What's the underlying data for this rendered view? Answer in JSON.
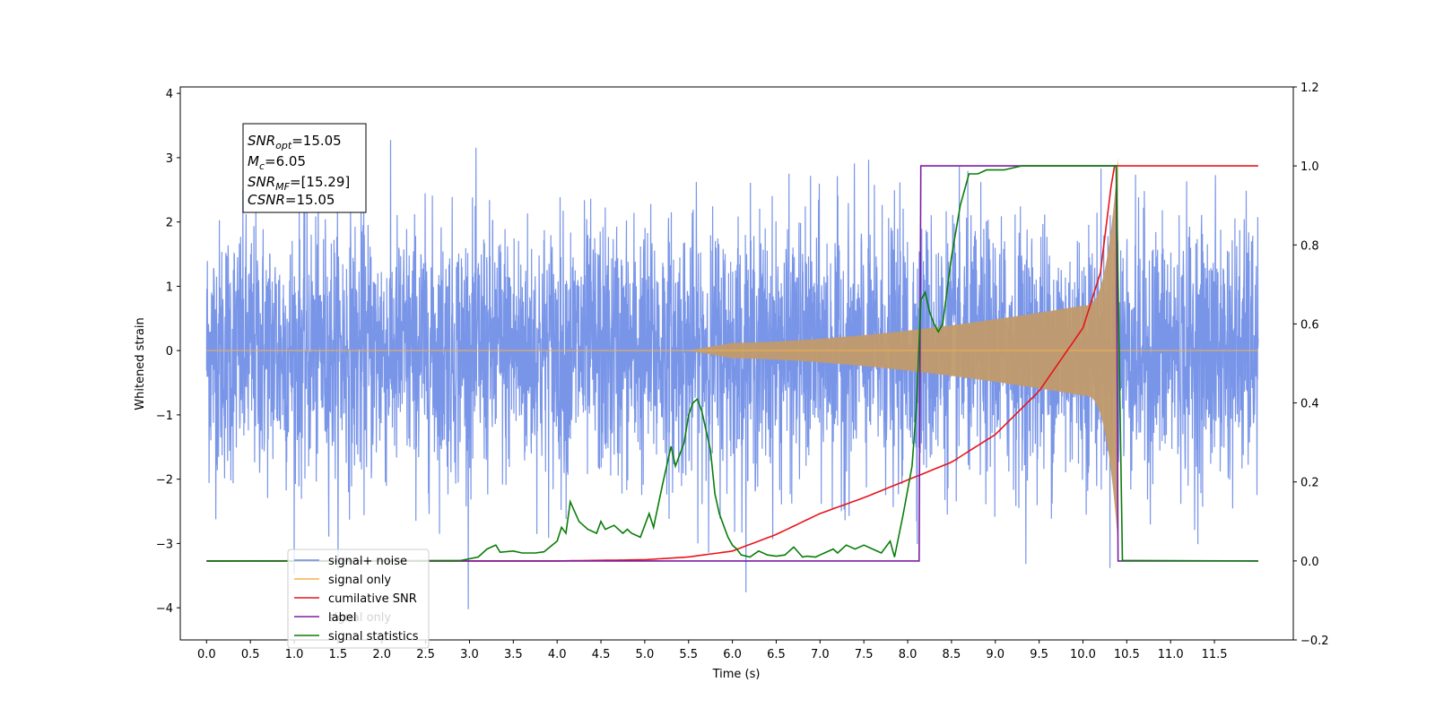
{
  "chart_data": {
    "type": "line",
    "xlabel": "Time (s)",
    "ylabel": "Whitened strain",
    "xlim": [
      -0.3,
      12.4
    ],
    "ylim": [
      -4.5,
      4.1
    ],
    "y2lim": [
      -0.2,
      1.2
    ],
    "x_ticks": [
      "0.0",
      "0.5",
      "1.0",
      "1.5",
      "2.0",
      "2.5",
      "3.0",
      "3.5",
      "4.0",
      "4.5",
      "5.0",
      "5.5",
      "6.0",
      "6.5",
      "7.0",
      "7.5",
      "8.0",
      "8.5",
      "9.0",
      "9.5",
      "10.0",
      "10.5",
      "11.0",
      "11.5"
    ],
    "y_ticks": [
      "4",
      "3",
      "2",
      "1",
      "0",
      "−1",
      "−2",
      "−3",
      "−4"
    ],
    "y2_ticks": [
      "1.2",
      "1.0",
      "0.8",
      "0.6",
      "0.4",
      "0.2",
      "0.0",
      "−0.2"
    ],
    "legend_placement": "lower-left",
    "legend": [
      "signal+ noise",
      "signal only",
      "cumilative SNR",
      "label",
      "signal statistics"
    ],
    "legend_overlap_text": "signal only",
    "colors": {
      "noise": "#6a8ae6",
      "signal": "#f5b04c",
      "signal_fill": "#c19a6b",
      "cumulative_snr": "#e8141a",
      "label": "#7b1fa2",
      "statistics": "#0a7d0a"
    },
    "annotation": {
      "lines": [
        {
          "name": "SNR",
          "sub": "opt",
          "value": "=15.05"
        },
        {
          "name": "M",
          "sub": "c",
          "value": "=6.05"
        },
        {
          "name": "SNR",
          "sub": "MF",
          "value": "=[15.29]"
        },
        {
          "name": "CSNR",
          "sub": "",
          "value": "=15.05"
        }
      ]
    },
    "series": [
      {
        "name": "signal+ noise",
        "axis": "left",
        "x_range": [
          0.0,
          12.0
        ],
        "noise_std": 1.0,
        "y_extremes": [
          -4.1,
          3.7
        ]
      },
      {
        "name": "signal only",
        "axis": "left",
        "x_range": [
          0.0,
          12.0
        ],
        "chirp_start": 4.0,
        "merger_time": 10.4,
        "amplitude_at_6": 0.12,
        "amplitude_at_8": 0.35,
        "amplitude_at_9": 0.48,
        "amplitude_at_10": 0.7,
        "peak_amplitude": 3.0
      },
      {
        "name": "cumilative SNR",
        "axis": "right",
        "x": [
          0.0,
          4.0,
          5.0,
          5.5,
          6.0,
          6.5,
          7.0,
          7.5,
          8.0,
          8.5,
          9.0,
          9.5,
          10.0,
          10.2,
          10.35,
          10.5,
          12.0
        ],
        "y": [
          0.0,
          0.0,
          0.003,
          0.01,
          0.025,
          0.067,
          0.12,
          0.16,
          0.205,
          0.25,
          0.32,
          0.43,
          0.59,
          0.73,
          1.0,
          1.0,
          1.0
        ]
      },
      {
        "name": "label",
        "axis": "right",
        "x": [
          0.0,
          8.13,
          8.15,
          10.38,
          10.4,
          12.0
        ],
        "y": [
          0.0,
          0.0,
          1.0,
          1.0,
          0.0,
          0.0
        ]
      },
      {
        "name": "signal statistics",
        "axis": "right",
        "x": [
          0.0,
          2.9,
          3.1,
          3.2,
          3.3,
          3.35,
          3.5,
          3.6,
          3.75,
          3.85,
          4.0,
          4.05,
          4.1,
          4.15,
          4.25,
          4.35,
          4.45,
          4.5,
          4.55,
          4.65,
          4.75,
          4.8,
          4.85,
          4.95,
          5.05,
          5.1,
          5.2,
          5.3,
          5.35,
          5.4,
          5.45,
          5.5,
          5.55,
          5.6,
          5.65,
          5.75,
          5.8,
          5.85,
          5.9,
          5.95,
          6.0,
          6.05,
          6.1,
          6.2,
          6.3,
          6.4,
          6.5,
          6.6,
          6.7,
          6.8,
          6.85,
          6.95,
          7.0,
          7.05,
          7.15,
          7.2,
          7.3,
          7.4,
          7.5,
          7.6,
          7.7,
          7.8,
          7.85,
          7.95,
          8.05,
          8.1,
          8.15,
          8.2,
          8.25,
          8.3,
          8.35,
          8.4,
          8.5,
          8.6,
          8.7,
          8.8,
          8.9,
          9.0,
          9.1,
          9.3,
          9.5,
          10.0,
          10.32,
          10.38,
          10.45,
          12.0
        ],
        "y": [
          0.0,
          0.001,
          0.01,
          0.03,
          0.04,
          0.022,
          0.025,
          0.02,
          0.02,
          0.023,
          0.05,
          0.085,
          0.07,
          0.15,
          0.1,
          0.08,
          0.07,
          0.1,
          0.08,
          0.09,
          0.07,
          0.08,
          0.07,
          0.06,
          0.12,
          0.085,
          0.19,
          0.29,
          0.24,
          0.27,
          0.3,
          0.37,
          0.4,
          0.41,
          0.38,
          0.28,
          0.17,
          0.12,
          0.09,
          0.06,
          0.04,
          0.03,
          0.015,
          0.01,
          0.025,
          0.015,
          0.012,
          0.015,
          0.035,
          0.01,
          0.012,
          0.01,
          0.015,
          0.02,
          0.03,
          0.02,
          0.04,
          0.03,
          0.04,
          0.03,
          0.02,
          0.05,
          0.01,
          0.12,
          0.24,
          0.39,
          0.66,
          0.68,
          0.63,
          0.6,
          0.58,
          0.6,
          0.77,
          0.9,
          0.98,
          0.98,
          0.99,
          0.99,
          0.99,
          1.0,
          1.0,
          1.0,
          1.0,
          1.0,
          0.001,
          0.0
        ]
      }
    ]
  }
}
